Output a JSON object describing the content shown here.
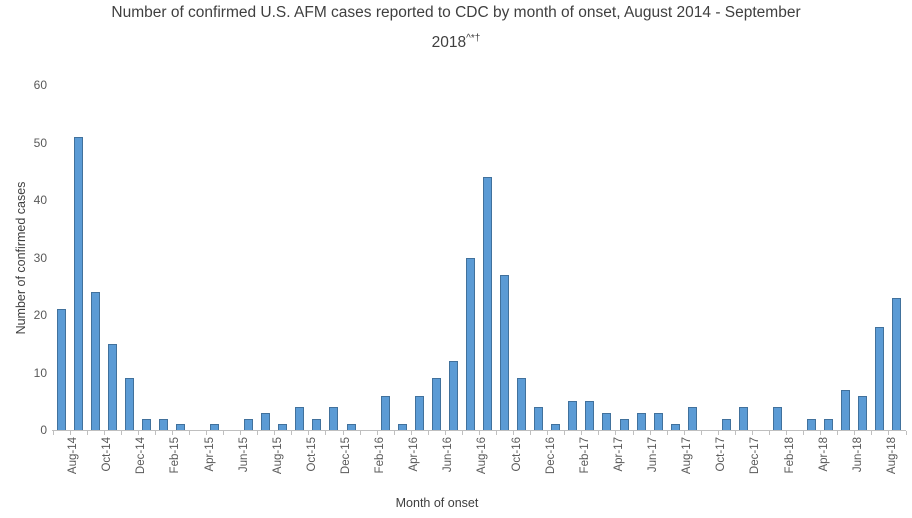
{
  "title": {
    "line1": "Number of confirmed U.S. AFM cases reported to CDC by month of onset, August 2014 - September",
    "line2_base": "2018",
    "line2_superscript": "^*†"
  },
  "chart_data": {
    "type": "bar",
    "title": "Number of confirmed U.S. AFM cases reported to CDC by month of onset, August 2014 - September 2018^*†",
    "xlabel": "Month of onset",
    "ylabel": "Number of confirmed cases",
    "ylim": [
      0,
      60
    ],
    "yticks": [
      0,
      10,
      20,
      30,
      40,
      50,
      60
    ],
    "grid": false,
    "legend_position": "none",
    "bar_fill_color": "#5B9BD5",
    "bar_border_color": "#41719C",
    "axis_line_color": "#bfbfbf",
    "x_label_interval": 2,
    "categories": [
      "Aug-14",
      "Sep-14",
      "Oct-14",
      "Nov-14",
      "Dec-14",
      "Jan-15",
      "Feb-15",
      "Mar-15",
      "Apr-15",
      "May-15",
      "Jun-15",
      "Jul-15",
      "Aug-15",
      "Sep-15",
      "Oct-15",
      "Nov-15",
      "Dec-15",
      "Jan-16",
      "Feb-16",
      "Mar-16",
      "Apr-16",
      "May-16",
      "Jun-16",
      "Jul-16",
      "Aug-16",
      "Sep-16",
      "Oct-16",
      "Nov-16",
      "Dec-16",
      "Jan-17",
      "Feb-17",
      "Mar-17",
      "Apr-17",
      "May-17",
      "Jun-17",
      "Jul-17",
      "Aug-17",
      "Sep-17",
      "Oct-17",
      "Nov-17",
      "Dec-17",
      "Jan-18",
      "Feb-18",
      "Mar-18",
      "Apr-18",
      "May-18",
      "Jun-18",
      "Jul-18",
      "Aug-18",
      "Sep-18"
    ],
    "values": [
      21,
      51,
      24,
      15,
      9,
      2,
      2,
      1,
      0,
      1,
      0,
      2,
      3,
      1,
      4,
      2,
      4,
      1,
      0,
      6,
      1,
      6,
      9,
      12,
      30,
      44,
      27,
      9,
      4,
      1,
      5,
      5,
      3,
      2,
      3,
      3,
      1,
      4,
      0,
      2,
      4,
      0,
      4,
      0,
      2,
      2,
      7,
      6,
      18,
      23
    ]
  }
}
